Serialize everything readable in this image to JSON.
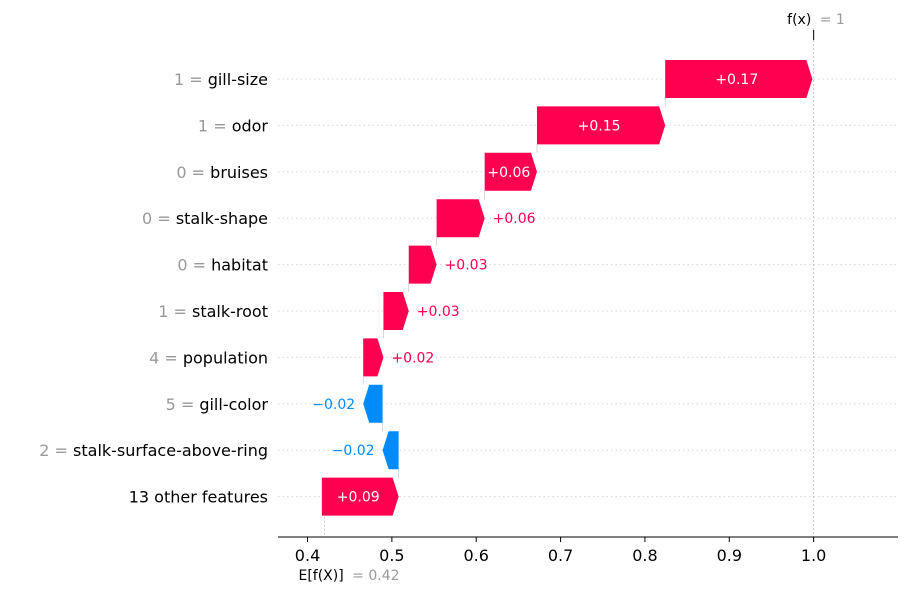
{
  "chart_data": {
    "type": "waterfall",
    "base_value": 0.42,
    "output_value": 1,
    "base_label_main": "E[f(X)]",
    "base_label_value": "= 0.42",
    "output_label_main": "f(x)",
    "output_label_value": "= 1",
    "xlim": [
      0.365,
      1.1
    ],
    "x_ticks": [
      0.4,
      0.5,
      0.6,
      0.7,
      0.8,
      0.9,
      1.0
    ],
    "x_tick_labels": [
      "0.4",
      "0.5",
      "0.6",
      "0.7",
      "0.8",
      "0.9",
      "1.0"
    ],
    "features": [
      {
        "value": "1",
        "name": "gill-size",
        "contribution": 0.17,
        "label": "+0.17",
        "start": 0.824,
        "end": 0.9985
      },
      {
        "value": "1",
        "name": "odor",
        "contribution": 0.15,
        "label": "+0.15",
        "start": 0.672,
        "end": 0.824
      },
      {
        "value": "0",
        "name": "bruises",
        "contribution": 0.06,
        "label": "+0.06",
        "start": 0.61,
        "end": 0.672
      },
      {
        "value": "0",
        "name": "stalk-shape",
        "contribution": 0.06,
        "label": "+0.06",
        "start": 0.553,
        "end": 0.61
      },
      {
        "value": "0",
        "name": "habitat",
        "contribution": 0.03,
        "label": "+0.03",
        "start": 0.52,
        "end": 0.553
      },
      {
        "value": "1",
        "name": "stalk-root",
        "contribution": 0.03,
        "label": "+0.03",
        "start": 0.49,
        "end": 0.52
      },
      {
        "value": "4",
        "name": "population",
        "contribution": 0.02,
        "label": "+0.02",
        "start": 0.466,
        "end": 0.49
      },
      {
        "value": "5",
        "name": "gill-color",
        "contribution": -0.02,
        "label": "−0.02",
        "start": 0.489,
        "end": 0.466
      },
      {
        "value": "2",
        "name": "stalk-surface-above-ring",
        "contribution": -0.02,
        "label": "−0.02",
        "start": 0.508,
        "end": 0.489
      },
      {
        "value": "",
        "name": "13 other features",
        "contribution": 0.09,
        "label": "+0.09",
        "start": 0.417,
        "end": 0.508
      }
    ],
    "colors": {
      "positive": "#ff0051",
      "negative": "#008bfb",
      "value_gray": "#999999",
      "text": "#000000",
      "grid": "#cccccc"
    }
  }
}
